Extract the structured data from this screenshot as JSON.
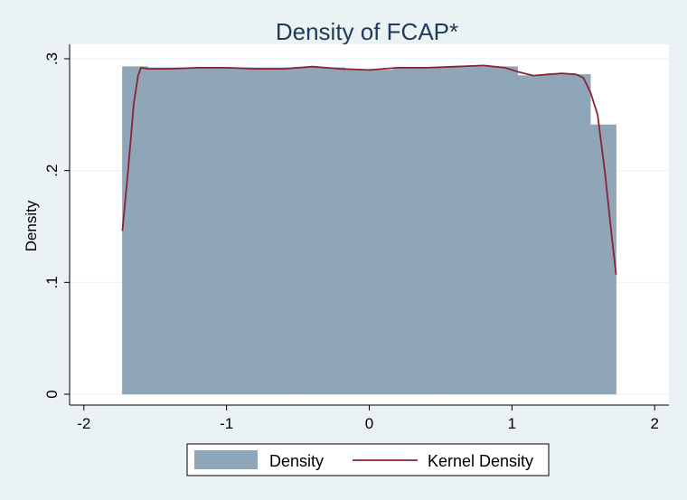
{
  "chart_data": {
    "type": "histogram",
    "title": "Density of FCAP*",
    "xlabel": "",
    "ylabel": "Density",
    "xlim": [
      -2.1,
      2.1
    ],
    "ylim": [
      0,
      0.3
    ],
    "x_ticks": [
      -2,
      -1,
      0,
      1,
      2
    ],
    "x_tick_labels": [
      "-2",
      "-1",
      "0",
      "1",
      "2"
    ],
    "y_ticks": [
      0,
      0.1,
      0.2,
      0.3
    ],
    "y_tick_labels": [
      "0",
      ".1",
      ".2",
      ".3"
    ],
    "grid": true,
    "legend_position": "bottom",
    "colors": {
      "bars": "#8fa5b8",
      "kernel": "#8b2232",
      "plot_bg": "#ffffff",
      "outer_bg": "#eaf2f3"
    },
    "bins": [
      {
        "x0": -1.73,
        "x1": -1.55,
        "density": 0.293
      },
      {
        "x0": -1.55,
        "x1": -1.21,
        "density": 0.292
      },
      {
        "x0": -1.21,
        "x1": -0.86,
        "density": 0.292
      },
      {
        "x0": -0.86,
        "x1": -0.52,
        "density": 0.292
      },
      {
        "x0": -0.52,
        "x1": -0.17,
        "density": 0.292
      },
      {
        "x0": -0.17,
        "x1": 0.17,
        "density": 0.29
      },
      {
        "x0": 0.17,
        "x1": 0.52,
        "density": 0.292
      },
      {
        "x0": 0.52,
        "x1": 0.86,
        "density": 0.293
      },
      {
        "x0": 0.86,
        "x1": 1.04,
        "density": 0.293
      },
      {
        "x0": 1.04,
        "x1": 1.21,
        "density": 0.285
      },
      {
        "x0": 1.21,
        "x1": 1.55,
        "density": 0.286
      },
      {
        "x0": 1.55,
        "x1": 1.73,
        "density": 0.241
      }
    ],
    "series": [
      {
        "name": "Kernel Density",
        "x": [
          -1.73,
          -1.69,
          -1.65,
          -1.62,
          -1.6,
          -1.55,
          -1.4,
          -1.2,
          -1.0,
          -0.8,
          -0.6,
          -0.4,
          -0.2,
          0.0,
          0.2,
          0.4,
          0.6,
          0.8,
          0.95,
          1.05,
          1.15,
          1.25,
          1.35,
          1.45,
          1.5,
          1.55,
          1.6,
          1.65,
          1.7,
          1.73
        ],
        "y": [
          0.146,
          0.2,
          0.26,
          0.285,
          0.292,
          0.291,
          0.291,
          0.292,
          0.292,
          0.291,
          0.291,
          0.293,
          0.291,
          0.29,
          0.292,
          0.292,
          0.293,
          0.294,
          0.292,
          0.288,
          0.285,
          0.286,
          0.287,
          0.286,
          0.283,
          0.27,
          0.25,
          0.2,
          0.14,
          0.107
        ]
      }
    ]
  },
  "legend": {
    "items": [
      {
        "label": "Density",
        "kind": "box"
      },
      {
        "label": "Kernel Density",
        "kind": "line"
      }
    ]
  }
}
